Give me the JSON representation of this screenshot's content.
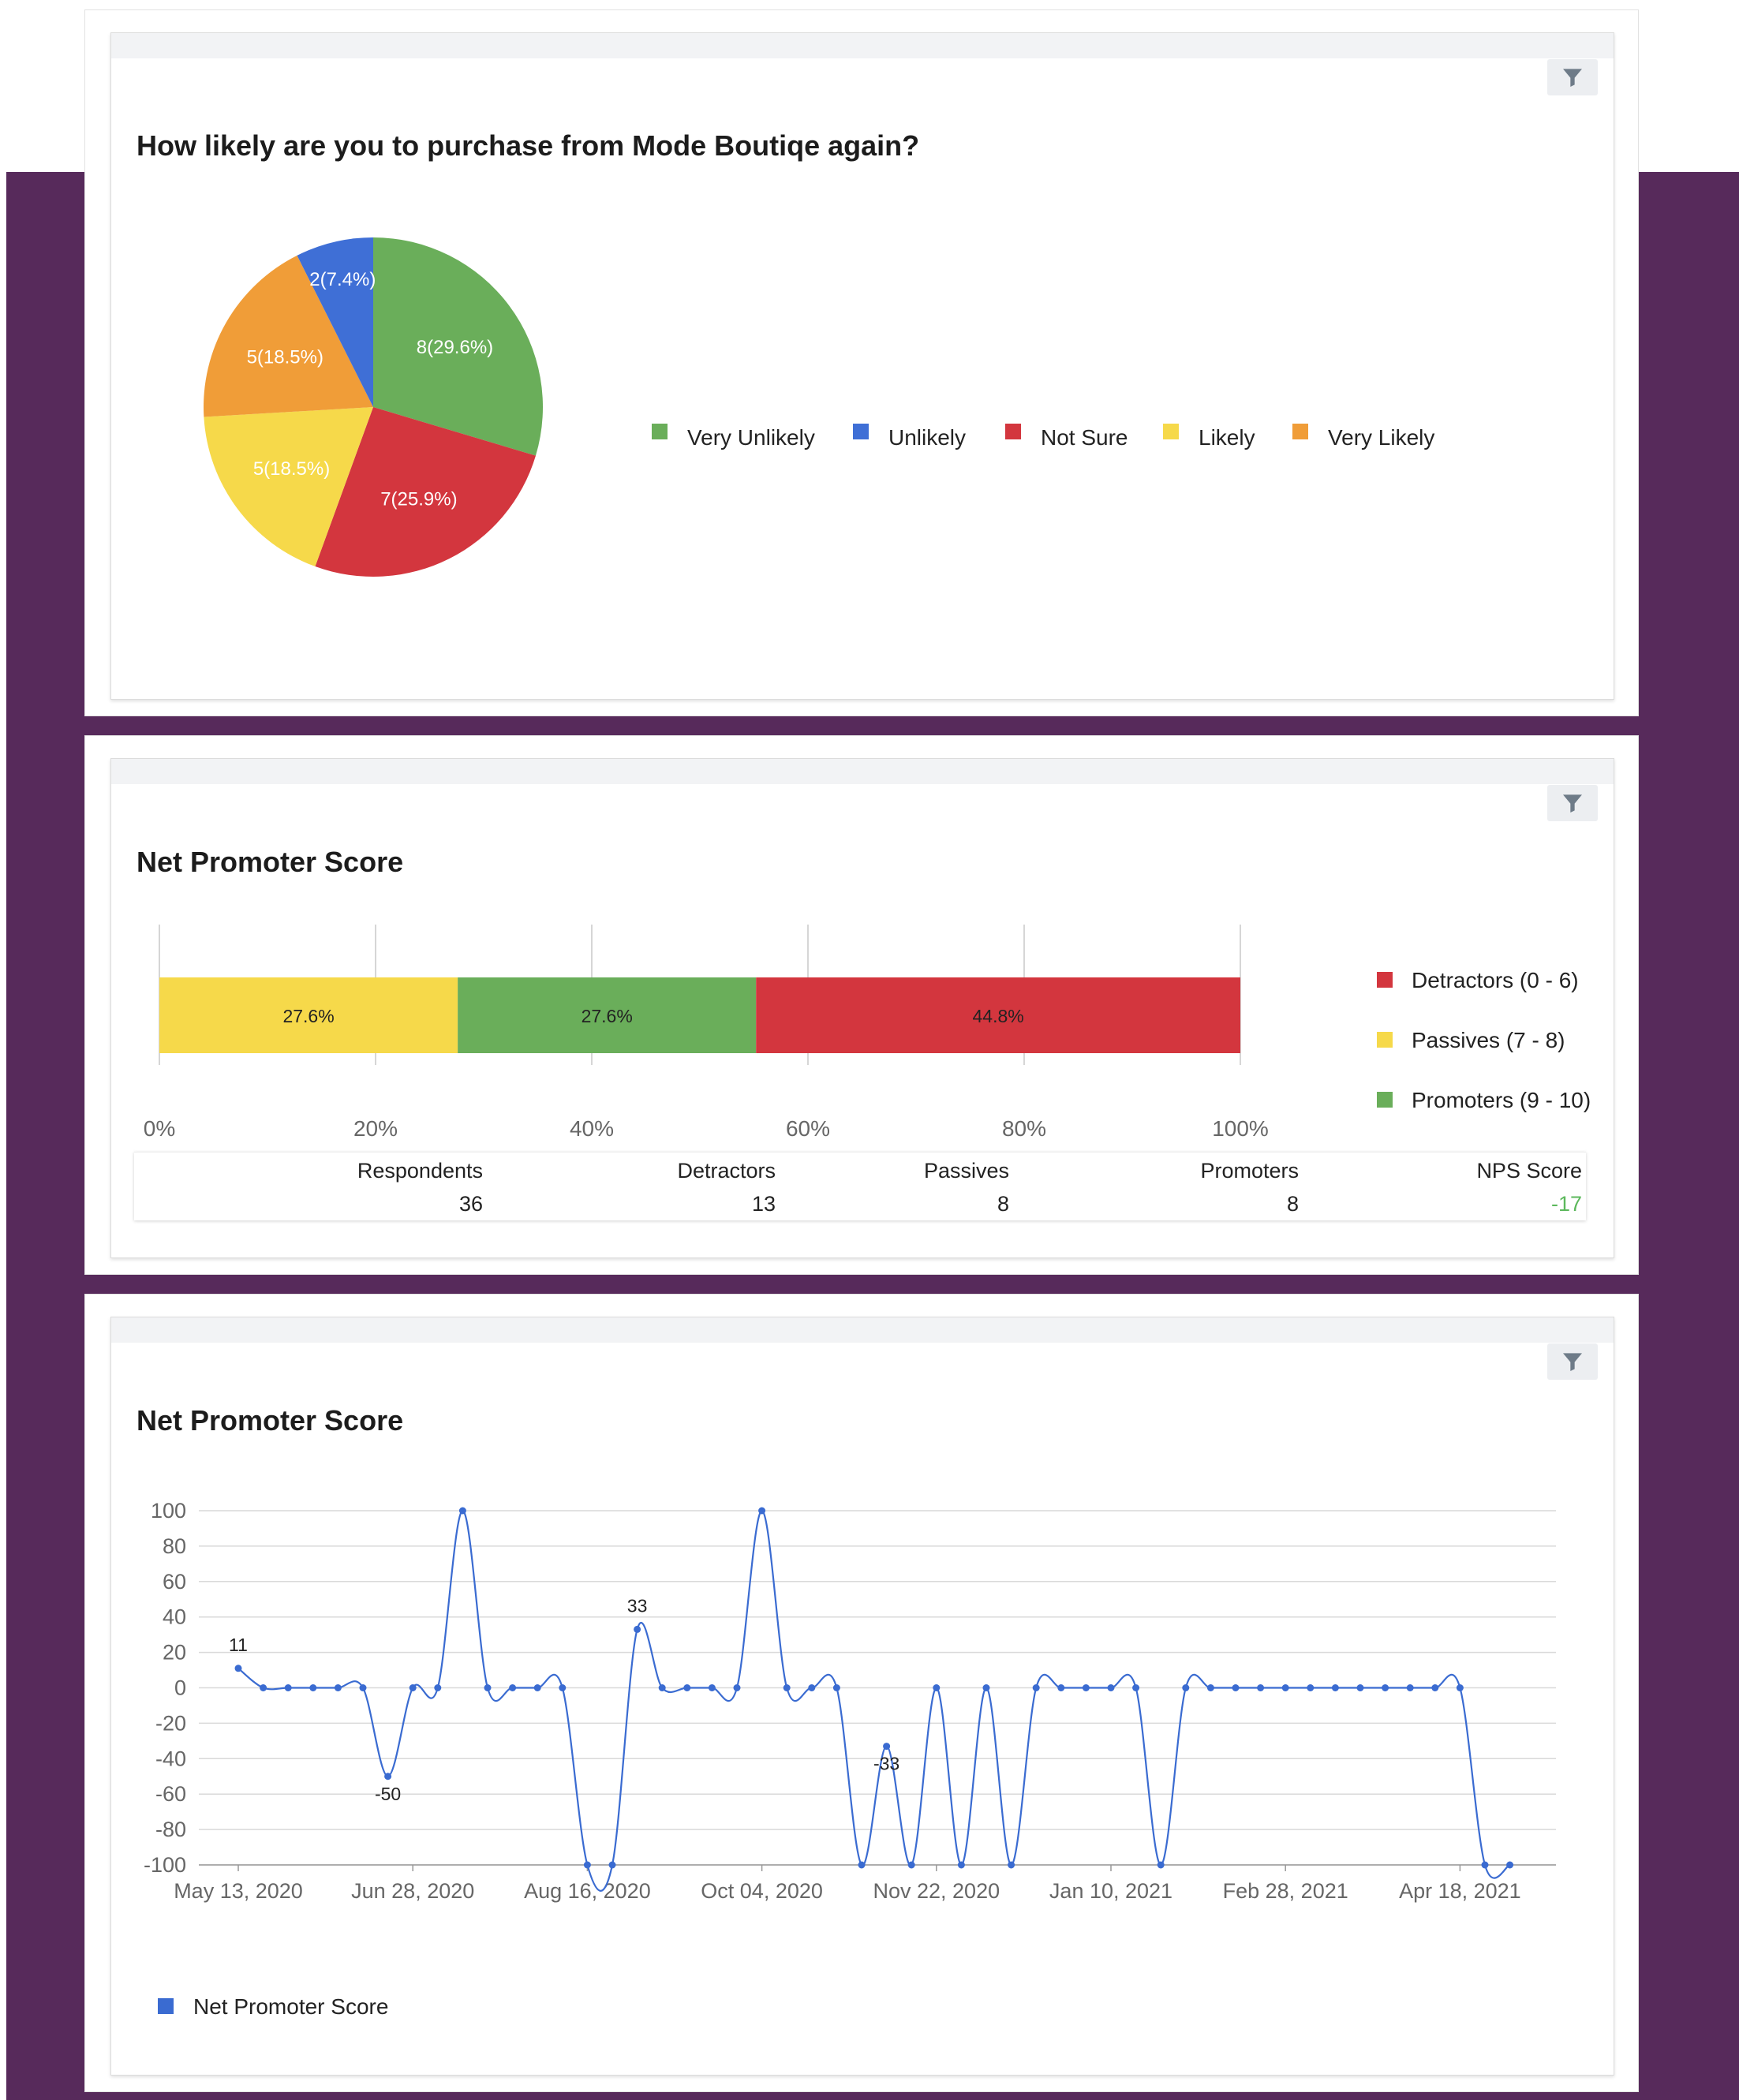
{
  "colors": {
    "green": "#6aae5a",
    "blue": "#3f6fd6",
    "red": "#d3363e",
    "yellow": "#f6d94a",
    "orange": "#f09d38",
    "line": "#3a6bd1"
  },
  "icons": {
    "filter": "filter-icon"
  },
  "pie_panel": {
    "title": "How likely are you to purchase from Mode Boutiqe again?"
  },
  "stacked_panel": {
    "title": "Net Promoter Score",
    "stats": {
      "headers": [
        "Respondents",
        "Detractors",
        "Passives",
        "Promoters",
        "NPS Score"
      ],
      "values": [
        "36",
        "13",
        "8",
        "8",
        "-17"
      ]
    }
  },
  "line_panel": {
    "title": "Net Promoter Score"
  },
  "chart_data": [
    {
      "type": "pie",
      "labels": [
        "Very Unlikely",
        "Not Sure",
        "Likely",
        "Very Likely",
        "Unlikely"
      ],
      "values": [
        8,
        7,
        5,
        5,
        2
      ],
      "data_labels": [
        "8(29.6%)",
        "7(25.9%)",
        "5(18.5%)",
        "5(18.5%)",
        "2(7.4%)"
      ],
      "colors": [
        "#6aae5a",
        "#d3363e",
        "#f6d94a",
        "#f09d38",
        "#3f6fd6"
      ],
      "legend": [
        "Very Unlikely",
        "Unlikely",
        "Not Sure",
        "Likely",
        "Very Likely"
      ],
      "legend_colors": [
        "#6aae5a",
        "#3f6fd6",
        "#d3363e",
        "#f6d94a",
        "#f09d38"
      ],
      "legend_position": "right"
    },
    {
      "type": "bar",
      "orientation": "horizontal-stacked",
      "segments": [
        {
          "name": "Passives (7 - 8)",
          "value": 27.6,
          "label": "27.6%",
          "color": "#f6d94a"
        },
        {
          "name": "Promoters (9 - 10)",
          "value": 27.6,
          "label": "27.6%",
          "color": "#6aae5a"
        },
        {
          "name": "Detractors (0 - 6)",
          "value": 44.8,
          "label": "44.8%",
          "color": "#d3363e"
        }
      ],
      "xlim": [
        0,
        100
      ],
      "xticks": [
        "0%",
        "20%",
        "40%",
        "60%",
        "80%",
        "100%"
      ],
      "legend": [
        {
          "name": "Detractors (0 - 6)",
          "color": "#d3363e"
        },
        {
          "name": "Passives (7 - 8)",
          "color": "#f6d94a"
        },
        {
          "name": "Promoters (9 - 10)",
          "color": "#6aae5a"
        }
      ],
      "legend_position": "right"
    },
    {
      "type": "line",
      "series": [
        {
          "name": "Net Promoter Score",
          "values": [
            11,
            0,
            0,
            0,
            0,
            0,
            -50,
            0,
            0,
            100,
            0,
            0,
            0,
            0,
            -100,
            -100,
            33,
            0,
            0,
            0,
            0,
            100,
            0,
            0,
            0,
            -100,
            -33,
            -100,
            0,
            -100,
            0,
            -100,
            0,
            0,
            0,
            0,
            0,
            -100,
            0,
            0,
            0,
            0,
            0,
            0,
            0,
            0,
            0,
            0,
            0,
            0,
            -100,
            -100
          ]
        }
      ],
      "x_start_date": "May 13, 2020",
      "x_interval": "1 week",
      "xticks": [
        "May 13, 2020",
        "Jun 28, 2020",
        "Aug 16, 2020",
        "Oct 04, 2020",
        "Nov 22, 2020",
        "Jan 10, 2021",
        "Feb 28, 2021",
        "Apr 18, 2021"
      ],
      "ylim": [
        -100,
        100
      ],
      "yticks": [
        100,
        80,
        60,
        40,
        20,
        0,
        -20,
        -40,
        -60,
        -80,
        -100
      ],
      "data_labels": [
        {
          "index": 0,
          "text": "11"
        },
        {
          "index": 6,
          "text": "-50"
        },
        {
          "index": 16,
          "text": "33"
        },
        {
          "index": 26,
          "text": "-33"
        }
      ],
      "grid": true,
      "legend_position": "bottom-left"
    }
  ]
}
